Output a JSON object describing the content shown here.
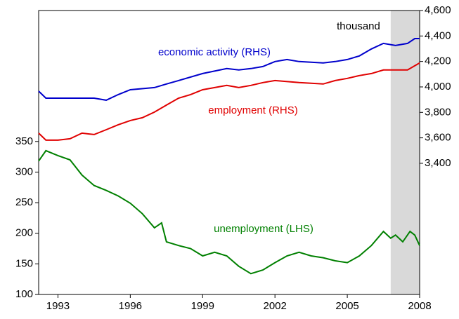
{
  "chart_data": {
    "type": "line",
    "xlim": [
      1992.2,
      2008
    ],
    "xticks": [
      1993,
      1996,
      1999,
      2002,
      2005,
      2008
    ],
    "ylim": [
      100,
      564
    ],
    "yticks": [
      100,
      150,
      200,
      250,
      300,
      350
    ],
    "y2lim": [
      2370,
      4600
    ],
    "y2ticks": [
      {
        "value": 3400,
        "label": "3,400"
      },
      {
        "value": 3600,
        "label": "3,600"
      },
      {
        "value": 3800,
        "label": "3,800"
      },
      {
        "value": 4000,
        "label": "4,000"
      },
      {
        "value": 4200,
        "label": "4,200"
      },
      {
        "value": 4400,
        "label": "4,400"
      },
      {
        "value": 4600,
        "label": "4,600"
      }
    ],
    "shading": [
      2006.8,
      2008
    ],
    "shading_color": "#d9d9d9",
    "annotations": [
      "thousand"
    ],
    "series": [
      {
        "name": "economic activity (RHS)",
        "color": "#0000cc",
        "axis": "y2",
        "x": [
          1992.2,
          1992.5,
          1993.5,
          1994.5,
          1995,
          1995.5,
          1996,
          1997,
          1997.5,
          1998,
          1999,
          2000,
          2000.5,
          2001,
          2001.5,
          2002,
          2002.5,
          2003,
          2004,
          2004.5,
          2005,
          2005.5,
          2006,
          2006.5,
          2007,
          2007.5,
          2007.8,
          2008
        ],
        "values": [
          3967,
          3912,
          3912,
          3912,
          3896,
          3940,
          3978,
          3995,
          4023,
          4050,
          4105,
          4144,
          4133,
          4144,
          4160,
          4199,
          4215,
          4199,
          4188,
          4199,
          4215,
          4243,
          4298,
          4342,
          4326,
          4342,
          4380,
          4380
        ]
      },
      {
        "name": "employment (RHS)",
        "color": "#e00000",
        "axis": "y2",
        "x": [
          1992.2,
          1992.5,
          1993,
          1993.5,
          1994,
          1994.5,
          1995,
          1995.5,
          1996,
          1996.5,
          1997,
          1997.5,
          1998,
          1998.5,
          1999,
          2000,
          2000.5,
          2001,
          2001.5,
          2002,
          2003,
          2004,
          2004.5,
          2005,
          2005.5,
          2006,
          2006.5,
          2007,
          2007.5,
          2008
        ],
        "values": [
          3637,
          3582,
          3582,
          3593,
          3637,
          3626,
          3664,
          3703,
          3736,
          3758,
          3802,
          3857,
          3912,
          3940,
          3978,
          4012,
          3995,
          4012,
          4034,
          4050,
          4034,
          4023,
          4050,
          4067,
          4089,
          4105,
          4133,
          4133,
          4133,
          4188
        ]
      },
      {
        "name": "unemployment (LHS)",
        "color": "#008000",
        "x": [
          1992.2,
          1992.5,
          1993,
          1993.5,
          1994,
          1994.5,
          1995,
          1995.5,
          1996,
          1996.5,
          1997,
          1997.3,
          1997.5,
          1998,
          1998.5,
          1999,
          1999.5,
          2000,
          2000.5,
          2001,
          2001.5,
          2002,
          2002.5,
          2003,
          2003.5,
          2004,
          2004.5,
          2005,
          2005.5,
          2006,
          2006.5,
          2006.8,
          2007,
          2007.3,
          2007.6,
          2007.8,
          2008
        ],
        "values": [
          318,
          335,
          327,
          320,
          295,
          278,
          270,
          261,
          249,
          232,
          209,
          217,
          186,
          180,
          175,
          163,
          169,
          163,
          146,
          134,
          140,
          152,
          163,
          169,
          163,
          160,
          155,
          152,
          163,
          180,
          203,
          192,
          197,
          186,
          203,
          197,
          180
        ]
      }
    ]
  }
}
